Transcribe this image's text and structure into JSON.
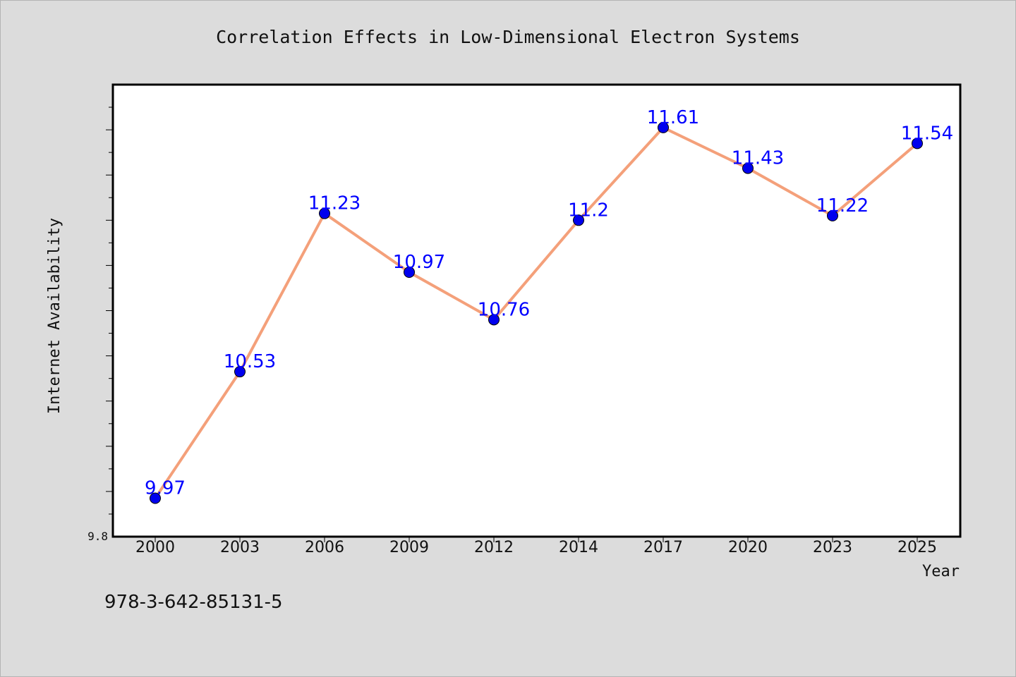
{
  "chart_data": {
    "type": "line",
    "title": "Correlation Effects in Low-Dimensional Electron Systems",
    "xlabel": "Year",
    "ylabel": "Internet Availability",
    "categories": [
      "2000",
      "2003",
      "2006",
      "2009",
      "2012",
      "2014",
      "2017",
      "2020",
      "2023",
      "2025"
    ],
    "series": [
      {
        "values": [
          9.97,
          10.53,
          11.23,
          10.97,
          10.76,
          11.2,
          11.61,
          11.43,
          11.22,
          11.54
        ]
      }
    ],
    "data_labels": [
      "9.97",
      "10.53",
      "11.23",
      "10.97",
      "10.76",
      "11.2",
      "11.61",
      "11.43",
      "11.22",
      "11.54"
    ],
    "y_tick_label": "9.8",
    "ylim": [
      9.8,
      11.8
    ],
    "grid": false,
    "line_color": "#f4a07a",
    "marker_color": "#0000ee",
    "label_color": "#0000ff"
  },
  "isbn": "978-3-642-85131-5"
}
